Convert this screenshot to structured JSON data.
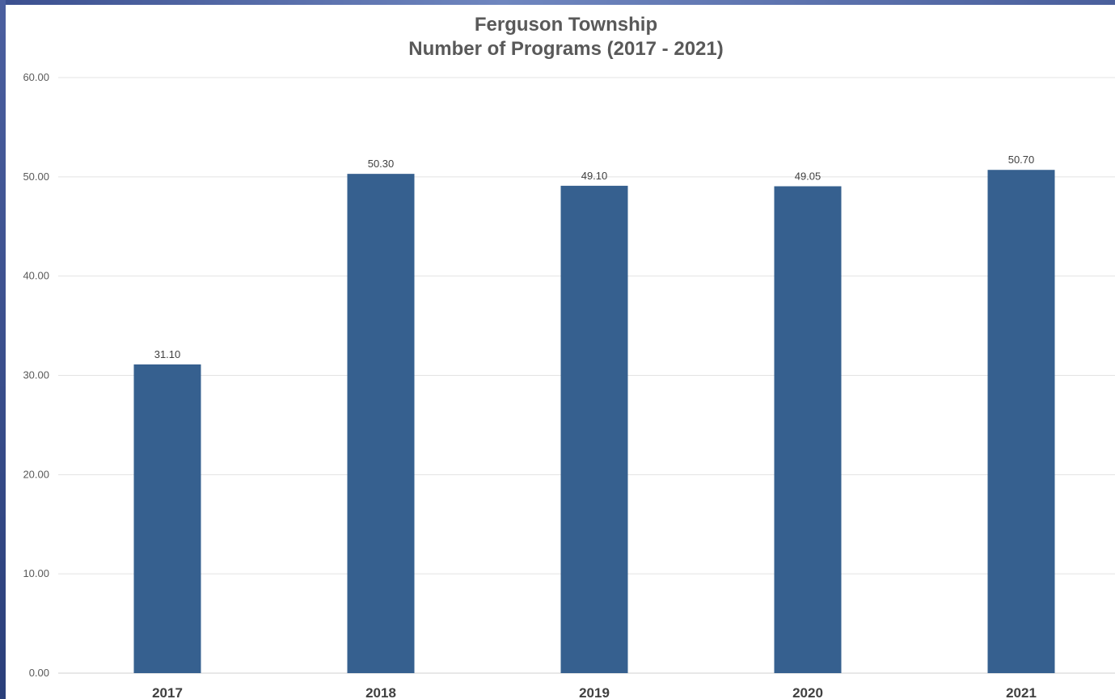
{
  "chart_data": {
    "type": "bar",
    "title": "Ferguson Township",
    "subtitle": "Number of Programs (2017 - 2021)",
    "categories": [
      "2017",
      "2018",
      "2019",
      "2020",
      "2021"
    ],
    "values": [
      31.1,
      50.3,
      49.1,
      49.05,
      50.7
    ],
    "value_labels": [
      "31.10",
      "50.30",
      "49.10",
      "49.05",
      "50.70"
    ],
    "yticks": [
      "0.00",
      "10.00",
      "20.00",
      "30.00",
      "40.00",
      "50.00",
      "60.00"
    ],
    "ylim": [
      0,
      60
    ],
    "xlabel": "",
    "ylabel": "",
    "grid": true,
    "legend": "none",
    "bar_color": "#36608f"
  }
}
